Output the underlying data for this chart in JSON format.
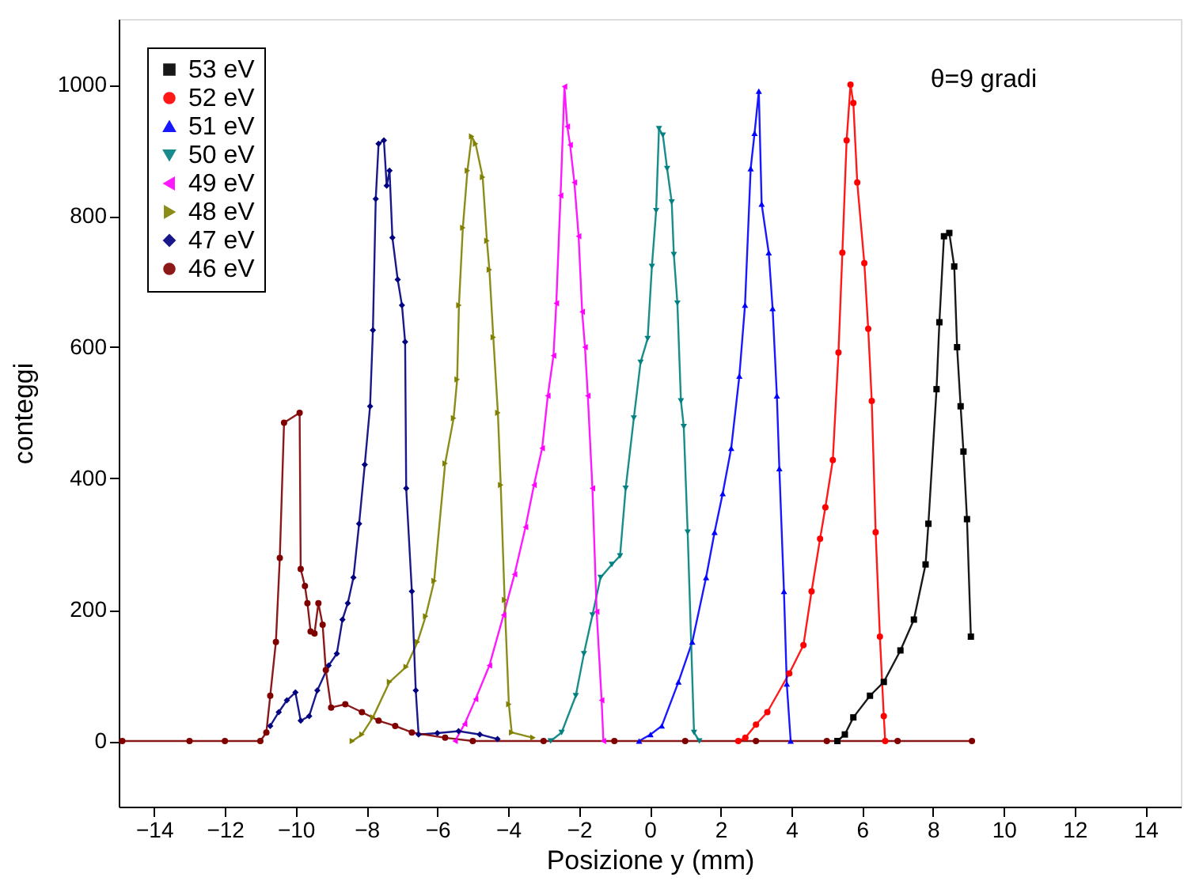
{
  "chart_data": {
    "type": "line",
    "xlabel": "Posizione y (mm)",
    "ylabel": "conteggi",
    "annotations": [
      "θ=9 gradi"
    ],
    "xlim": [
      -15,
      15
    ],
    "xticks": [
      -14,
      -12,
      -10,
      -8,
      -6,
      -4,
      -2,
      0,
      2,
      4,
      6,
      8,
      10,
      12,
      14
    ],
    "ylim": [
      -100,
      1100
    ],
    "yticks": [
      0,
      200,
      400,
      600,
      800,
      1000
    ],
    "grid": false,
    "legend": "top left",
    "line_style": "solid",
    "series": [
      {
        "name": "53 eV",
        "color": "#000000",
        "marker": "square",
        "x": [
          5.3,
          5.51,
          5.75,
          6.22,
          6.61,
          7.08,
          7.46,
          7.79,
          7.87,
          8.1,
          8.18,
          8.31,
          8.46,
          8.6,
          8.68,
          8.78,
          8.86,
          8.96,
          9.07
        ],
        "values": [
          0,
          10,
          36,
          69,
          90,
          138,
          185,
          269,
          331,
          536,
          638,
          769,
          774,
          723,
          600,
          510,
          441,
          338,
          159
        ]
      },
      {
        "name": "52 eV",
        "color": "#ff0000",
        "marker": "circle",
        "x": [
          2.5,
          2.7,
          3.0,
          3.32,
          3.94,
          4.34,
          4.57,
          4.81,
          4.96,
          5.17,
          5.33,
          5.44,
          5.56,
          5.67,
          5.75,
          5.86,
          6.06,
          6.17,
          6.27,
          6.38,
          6.5,
          6.61,
          6.65
        ],
        "values": [
          0,
          5,
          25,
          44,
          103,
          146,
          228,
          308,
          356,
          428,
          592,
          744,
          915,
          1000,
          972,
          851,
          728,
          628,
          518,
          318,
          159,
          38,
          0
        ]
      },
      {
        "name": "51 eV",
        "color": "#0000ff",
        "marker": "triangle",
        "x": [
          -0.3,
          0.02,
          0.34,
          0.81,
          1.2,
          1.59,
          1.83,
          2.06,
          2.3,
          2.53,
          2.69,
          2.85,
          2.96,
          3.08,
          3.16,
          3.36,
          3.47,
          3.59,
          3.66,
          3.79,
          3.87,
          3.98
        ],
        "values": [
          0,
          10,
          23,
          90,
          151,
          249,
          318,
          377,
          446,
          556,
          664,
          872,
          926,
          990,
          818,
          744,
          659,
          526,
          415,
          228,
          87,
          0
        ]
      },
      {
        "name": "50 eV",
        "color": "#008080",
        "marker": "triangle-down",
        "x": [
          -2.8,
          -2.49,
          -2.09,
          -1.86,
          -1.62,
          -1.39,
          -1.07,
          -0.84,
          -0.68,
          -0.45,
          -0.26,
          -0.06,
          0.06,
          0.18,
          0.26,
          0.37,
          0.49,
          0.62,
          0.68,
          0.78,
          0.88,
          0.96,
          1.07,
          1.25,
          1.4
        ],
        "values": [
          0,
          13,
          69,
          133,
          192,
          249,
          269,
          282,
          385,
          492,
          577,
          613,
          723,
          808,
          933,
          923,
          872,
          821,
          741,
          667,
          518,
          479,
          318,
          13,
          0
        ]
      },
      {
        "name": "49 eV",
        "color": "#ff00ff",
        "marker": "triangle-left",
        "x": [
          -5.5,
          -5.23,
          -4.92,
          -4.53,
          -4.13,
          -3.82,
          -3.51,
          -3.27,
          -3.04,
          -2.88,
          -2.72,
          -2.64,
          -2.52,
          -2.41,
          -2.33,
          -2.25,
          -2.13,
          -2.01,
          -1.91,
          -1.83,
          -1.75,
          -1.62,
          -1.5,
          -1.36,
          -1.31
        ],
        "values": [
          0,
          26,
          64,
          115,
          192,
          254,
          326,
          390,
          446,
          526,
          587,
          667,
          831,
          997,
          936,
          908,
          851,
          769,
          654,
          600,
          526,
          385,
          197,
          62,
          0
        ]
      },
      {
        "name": "48 eV",
        "color": "#808000",
        "marker": "triangle-right",
        "x": [
          -8.4,
          -8.13,
          -7.82,
          -7.35,
          -6.88,
          -6.56,
          -6.33,
          -6.09,
          -5.78,
          -5.54,
          -5.44,
          -5.39,
          -5.28,
          -5.15,
          -5.03,
          -4.92,
          -4.72,
          -4.6,
          -4.53,
          -4.42,
          -4.29,
          -4.21,
          -4.1,
          -3.98,
          -3.9,
          -3.3
        ],
        "values": [
          0,
          10,
          36,
          90,
          113,
          151,
          190,
          244,
          423,
          492,
          551,
          664,
          782,
          869,
          921,
          910,
          859,
          762,
          718,
          615,
          500,
          390,
          215,
          56,
          13,
          5
        ]
      },
      {
        "name": "47 eV",
        "color": "#000080",
        "marker": "diamond",
        "x": [
          -10.72,
          -10.48,
          -10.25,
          -10.01,
          -9.86,
          -9.62,
          -9.39,
          -9.07,
          -8.84,
          -8.68,
          -8.53,
          -8.37,
          -8.21,
          -8.05,
          -7.9,
          -7.82,
          -7.74,
          -7.66,
          -7.51,
          -7.43,
          -7.35,
          -7.27,
          -7.12,
          -7.0,
          -6.91,
          -6.88,
          -6.72,
          -6.61,
          -6.53,
          -6.0,
          -5.4,
          -4.8,
          -4.3
        ],
        "values": [
          23,
          44,
          62,
          74,
          31,
          38,
          77,
          115,
          133,
          185,
          210,
          249,
          331,
          421,
          510,
          626,
          826,
          910,
          915,
          846,
          869,
          767,
          703,
          664,
          608,
          385,
          228,
          77,
          10,
          12,
          15,
          10,
          3
        ]
      },
      {
        "name": "46 eV",
        "color": "#800000",
        "marker": "circle",
        "x": [
          -14.9,
          -13,
          -12,
          -11,
          -10.83,
          -10.72,
          -10.56,
          -10.45,
          -10.33,
          -9.89,
          -9.86,
          -9.74,
          -9.67,
          -9.58,
          -9.47,
          -9.36,
          -9.24,
          -9.15,
          -9.0,
          -8.6,
          -8.13,
          -7.66,
          -7.19,
          -6.72,
          -5.78,
          -5,
          -3,
          -1,
          1,
          3,
          5,
          7,
          9.1
        ],
        "values": [
          0,
          0,
          0,
          0,
          13,
          69,
          151,
          279,
          485,
          500,
          262,
          236,
          210,
          167,
          164,
          210,
          177,
          108,
          51,
          56,
          44,
          31,
          23,
          13,
          5,
          0,
          0,
          0,
          0,
          0,
          0,
          0,
          0
        ]
      }
    ]
  }
}
